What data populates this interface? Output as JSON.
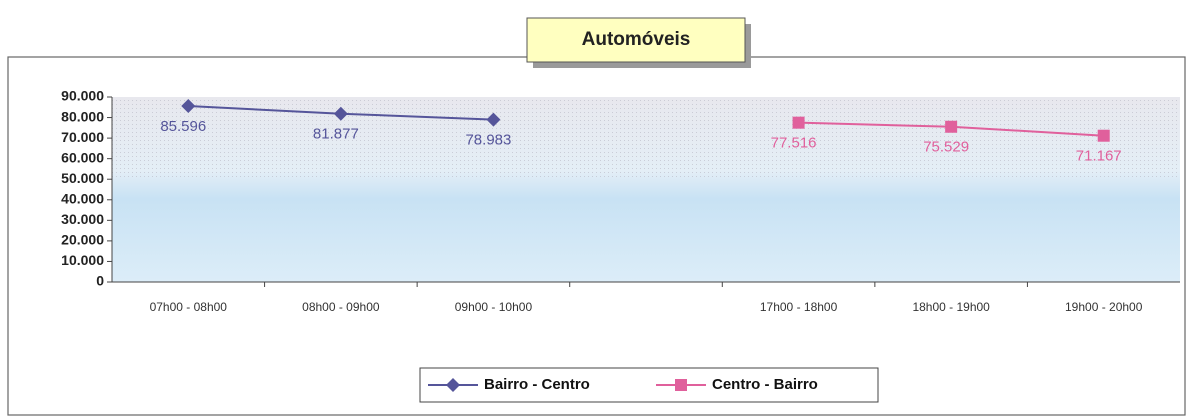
{
  "chart_data": {
    "type": "line",
    "title": "Automóveis",
    "categories": [
      "07h00 - 08h00",
      "08h00 - 09h00",
      "09h00 - 10h00",
      null,
      "17h00 - 18h00",
      "18h00 - 19h00",
      "19h00 - 20h00"
    ],
    "series": [
      {
        "name": "Bairro - Centro",
        "color": "#55559a",
        "marker": "diamond",
        "values": [
          85596,
          81877,
          78983,
          null,
          null,
          null,
          null
        ],
        "value_labels": [
          "85.596",
          "81.877",
          "78.983",
          null,
          null,
          null,
          null
        ]
      },
      {
        "name": "Centro - Bairro",
        "color": "#e0609c",
        "marker": "square",
        "values": [
          null,
          null,
          null,
          null,
          77516,
          75529,
          71167
        ],
        "value_labels": [
          null,
          null,
          null,
          null,
          "77.516",
          "75.529",
          "71.167"
        ]
      }
    ],
    "ylim": [
      0,
      90000
    ],
    "yticks": [
      0,
      {
        "value": 10000,
        "label": "10.000"
      },
      {
        "value": 20000,
        "label": "20.000"
      },
      {
        "value": 30000,
        "label": "30.000"
      },
      {
        "value": 40000,
        "label": "40.000"
      },
      {
        "value": 50000,
        "label": "50.000"
      },
      {
        "value": 60000,
        "label": "60.000"
      },
      {
        "value": 70000,
        "label": "70.000"
      },
      {
        "value": 80000,
        "label": "80.000"
      },
      {
        "value": 90000,
        "label": "90.000"
      }
    ],
    "legend": "bottom"
  }
}
